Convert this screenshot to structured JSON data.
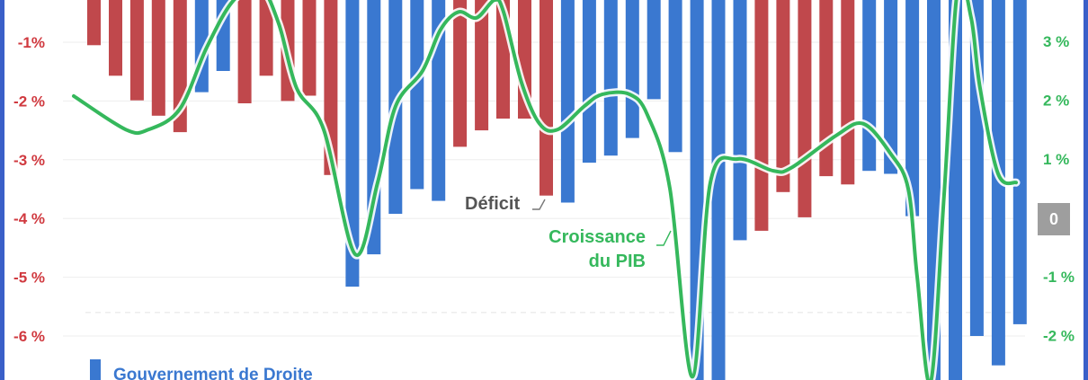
{
  "chart_data": {
    "type": "bar",
    "y_left_ticks": [
      {
        "value": -1,
        "label": "-1%"
      },
      {
        "value": -2,
        "label": "-2 %"
      },
      {
        "value": -3,
        "label": "-3 %"
      },
      {
        "value": -4,
        "label": "-4 %"
      },
      {
        "value": -5,
        "label": "-5 %"
      },
      {
        "value": -6,
        "label": "-6 %"
      }
    ],
    "y_right_ticks": [
      {
        "value": 3,
        "label": "3 %"
      },
      {
        "value": 2,
        "label": "2 %"
      },
      {
        "value": 1,
        "label": "1 %"
      },
      {
        "value": -1,
        "label": "-1 %"
      },
      {
        "value": -2,
        "label": "-2 %"
      }
    ],
    "zero_badge": "0",
    "y_left_range": [
      -6.9,
      0.75
    ],
    "y_right_range": [
      -2.4,
      4.0
    ],
    "bars": [
      {
        "value": -1.05,
        "party": "left"
      },
      {
        "value": -1.57,
        "party": "left"
      },
      {
        "value": -1.99,
        "party": "left"
      },
      {
        "value": -2.25,
        "party": "left"
      },
      {
        "value": -2.53,
        "party": "left"
      },
      {
        "value": -1.85,
        "party": "right"
      },
      {
        "value": -1.49,
        "party": "right"
      },
      {
        "value": -2.04,
        "party": "left"
      },
      {
        "value": -1.57,
        "party": "left"
      },
      {
        "value": -2.0,
        "party": "left"
      },
      {
        "value": -1.91,
        "party": "left"
      },
      {
        "value": -3.26,
        "party": "left"
      },
      {
        "value": -5.16,
        "party": "right"
      },
      {
        "value": -4.61,
        "party": "right"
      },
      {
        "value": -3.92,
        "party": "right"
      },
      {
        "value": -3.5,
        "party": "right"
      },
      {
        "value": -3.7,
        "party": "right"
      },
      {
        "value": -2.78,
        "party": "left"
      },
      {
        "value": -2.5,
        "party": "left"
      },
      {
        "value": -2.3,
        "party": "left"
      },
      {
        "value": -2.3,
        "party": "left"
      },
      {
        "value": -3.61,
        "party": "left"
      },
      {
        "value": -3.73,
        "party": "right"
      },
      {
        "value": -3.05,
        "party": "right"
      },
      {
        "value": -2.93,
        "party": "right"
      },
      {
        "value": -2.63,
        "party": "right"
      },
      {
        "value": -1.97,
        "party": "right"
      },
      {
        "value": -2.87,
        "party": "right"
      },
      {
        "value": -7.2,
        "party": "right"
      },
      {
        "value": -7.2,
        "party": "right"
      },
      {
        "value": -4.37,
        "party": "right"
      },
      {
        "value": -4.21,
        "party": "left"
      },
      {
        "value": -3.55,
        "party": "left"
      },
      {
        "value": -3.98,
        "party": "left"
      },
      {
        "value": -3.28,
        "party": "left"
      },
      {
        "value": -3.42,
        "party": "left"
      },
      {
        "value": -3.19,
        "party": "right"
      },
      {
        "value": -3.24,
        "party": "right"
      },
      {
        "value": -3.96,
        "party": "right"
      },
      {
        "value": -7.2,
        "party": "right"
      },
      {
        "value": -7.2,
        "party": "right"
      },
      {
        "value": -6.0,
        "party": "right"
      },
      {
        "value": -6.5,
        "party": "right"
      },
      {
        "value": -5.8,
        "party": "right"
      }
    ],
    "growth_line": [
      [
        82,
        2.07
      ],
      [
        140,
        1.5
      ],
      [
        165,
        1.5
      ],
      [
        200,
        1.85
      ],
      [
        230,
        2.9
      ],
      [
        260,
        3.7
      ],
      [
        290,
        3.9
      ],
      [
        310,
        3.3
      ],
      [
        330,
        2.2
      ],
      [
        360,
        1.5
      ],
      [
        395,
        -0.62
      ],
      [
        420,
        0.6
      ],
      [
        440,
        1.9
      ],
      [
        470,
        2.5
      ],
      [
        490,
        3.2
      ],
      [
        510,
        3.5
      ],
      [
        530,
        3.4
      ],
      [
        550,
        3.7
      ],
      [
        560,
        3.5
      ],
      [
        580,
        2.3
      ],
      [
        600,
        1.6
      ],
      [
        620,
        1.5
      ],
      [
        650,
        1.9
      ],
      [
        670,
        2.1
      ],
      [
        700,
        2.1
      ],
      [
        720,
        1.75
      ],
      [
        745,
        0.5
      ],
      [
        770,
        -2.7
      ],
      [
        790,
        0.6
      ],
      [
        820,
        1.0
      ],
      [
        860,
        0.8
      ],
      [
        880,
        0.85
      ],
      [
        930,
        1.4
      ],
      [
        960,
        1.6
      ],
      [
        990,
        1.1
      ],
      [
        1010,
        0.5
      ],
      [
        1020,
        -1.0
      ],
      [
        1035,
        -2.8
      ],
      [
        1050,
        0.4
      ],
      [
        1065,
        3.9
      ],
      [
        1080,
        3.4
      ],
      [
        1090,
        2.2
      ],
      [
        1110,
        0.75
      ],
      [
        1130,
        0.6
      ]
    ],
    "annotations": {
      "deficit": "Déficit",
      "growth_line1": "Croissance",
      "growth_line2": "du PIB"
    },
    "legend": [
      {
        "label": "Gouvernement de Droite",
        "color": "#3a78d0"
      }
    ],
    "colors": {
      "right_bar": "#3a78d0",
      "left_bar": "#c0484c",
      "growth_line": "#35b85c",
      "left_axis": "#d0393f",
      "right_axis": "#35b85c",
      "zero_badge": "#9e9e9e"
    }
  }
}
